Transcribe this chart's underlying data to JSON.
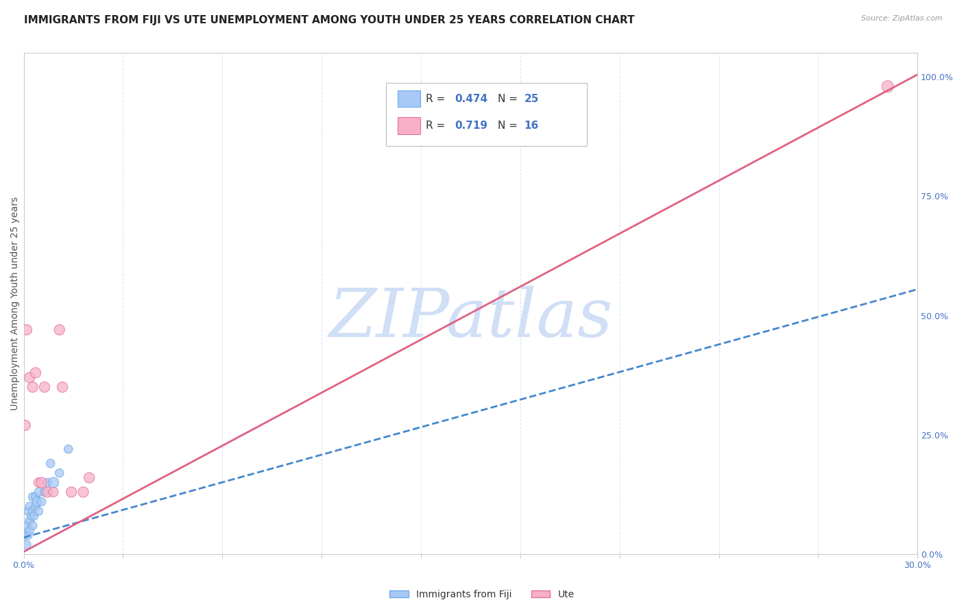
{
  "title": "IMMIGRANTS FROM FIJI VS UTE UNEMPLOYMENT AMONG YOUTH UNDER 25 YEARS CORRELATION CHART",
  "source": "Source: ZipAtlas.com",
  "ylabel": "Unemployment Among Youth under 25 years",
  "x_min": 0.0,
  "x_max": 0.3,
  "y_min": 0.0,
  "y_max": 1.05,
  "right_yticks": [
    0.0,
    0.25,
    0.5,
    0.75,
    1.0
  ],
  "right_yticklabels": [
    "0.0%",
    "25.0%",
    "50.0%",
    "75.0%",
    "100.0%"
  ],
  "fiji_R": 0.474,
  "fiji_N": 25,
  "ute_R": 0.719,
  "ute_N": 16,
  "fiji_color": "#a8c8f8",
  "fiji_edge_color": "#6aaae0",
  "ute_color": "#f8b0c8",
  "ute_edge_color": "#e07098",
  "fiji_line_color": "#4488cc",
  "ute_line_color": "#e06080",
  "watermark_color": "#d0dff5",
  "fiji_scatter_x": [
    0.0005,
    0.001,
    0.001,
    0.0015,
    0.0015,
    0.002,
    0.002,
    0.002,
    0.0025,
    0.003,
    0.003,
    0.003,
    0.0035,
    0.004,
    0.004,
    0.0045,
    0.005,
    0.005,
    0.006,
    0.007,
    0.008,
    0.009,
    0.01,
    0.012,
    0.015
  ],
  "fiji_scatter_y": [
    0.04,
    0.02,
    0.06,
    0.04,
    0.09,
    0.05,
    0.07,
    0.1,
    0.08,
    0.06,
    0.09,
    0.12,
    0.08,
    0.1,
    0.12,
    0.11,
    0.09,
    0.13,
    0.11,
    0.13,
    0.15,
    0.19,
    0.15,
    0.17,
    0.22
  ],
  "fiji_scatter_sizes": [
    80,
    80,
    80,
    80,
    80,
    80,
    80,
    80,
    80,
    80,
    80,
    80,
    80,
    80,
    80,
    100,
    80,
    80,
    80,
    80,
    80,
    80,
    120,
    80,
    80
  ],
  "ute_scatter_x": [
    0.0005,
    0.001,
    0.002,
    0.003,
    0.004,
    0.005,
    0.006,
    0.007,
    0.008,
    0.01,
    0.012,
    0.013,
    0.016,
    0.02,
    0.022,
    0.29
  ],
  "ute_scatter_y": [
    0.27,
    0.47,
    0.37,
    0.35,
    0.38,
    0.15,
    0.15,
    0.35,
    0.13,
    0.13,
    0.47,
    0.35,
    0.13,
    0.13,
    0.16,
    0.98
  ],
  "ute_scatter_sizes": [
    120,
    120,
    120,
    120,
    120,
    100,
    120,
    120,
    120,
    100,
    120,
    120,
    120,
    120,
    120,
    150
  ],
  "fiji_line_x0": 0.0,
  "fiji_line_y0": 0.035,
  "fiji_line_x1": 0.3,
  "fiji_line_y1": 0.555,
  "ute_line_x0": 0.0,
  "ute_line_y0": 0.005,
  "ute_line_x1": 0.3,
  "ute_line_y1": 1.005,
  "background_color": "#ffffff",
  "grid_color": "#d8e4f0",
  "title_fontsize": 11,
  "axis_label_fontsize": 10,
  "tick_fontsize": 9
}
